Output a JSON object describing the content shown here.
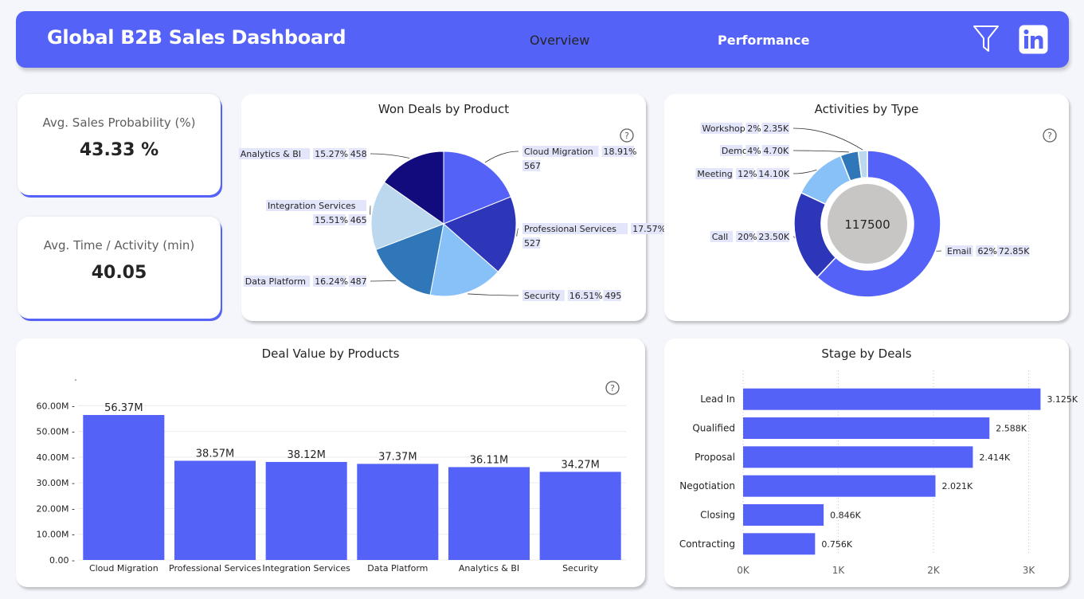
{
  "header": {
    "title": "Global B2B Sales Dashboard",
    "nav": [
      "Overview",
      "Performance"
    ],
    "icons": [
      "filter-icon",
      "linkedin-icon"
    ]
  },
  "kpis": [
    {
      "label": "Avg. Sales Probability (%)",
      "value": "43.33 %"
    },
    {
      "label": "Avg. Time / Activity (min)",
      "value": "40.05"
    }
  ],
  "colors": {
    "accent": "#5562f7",
    "background": "#f4f6fc"
  },
  "chart_data": [
    {
      "type": "pie",
      "title": "Won Deals by Product",
      "categories": [
        "Cloud Migration",
        "Professional Services",
        "Security",
        "Data Platform",
        "Integration Services",
        "Analytics & BI"
      ],
      "values": [
        567,
        527,
        495,
        487,
        465,
        458
      ],
      "percents": [
        "18.91%",
        "17.57%",
        "16.51%",
        "16.24%",
        "15.51%",
        "15.27%"
      ],
      "colors": [
        "#5562f7",
        "#2d35b9",
        "#88c1f8",
        "#2f77b8",
        "#bcd8ee",
        "#120b7e"
      ]
    },
    {
      "type": "pie",
      "subtype": "donut",
      "title": "Activities by Type",
      "center_label": "117500",
      "categories": [
        "Email",
        "Call",
        "Meeting",
        "Demo",
        "Workshop"
      ],
      "values": [
        72850,
        23500,
        14100,
        4700,
        2350
      ],
      "value_labels": [
        "72.85K",
        "23.50K",
        "14.10K",
        "4.70K",
        "2.35K"
      ],
      "percents": [
        "62%",
        "20%",
        "12%",
        "4%",
        "2%"
      ],
      "colors": [
        "#5562f7",
        "#2d35b9",
        "#88c1f8",
        "#2f77b8",
        "#bcd8ee"
      ]
    },
    {
      "type": "bar",
      "title": "Deal Value by Products",
      "categories": [
        "Cloud Migration",
        "Professional Services",
        "Integration Services",
        "Data Platform",
        "Analytics & BI",
        "Security"
      ],
      "values": [
        56.37,
        38.57,
        38.12,
        37.37,
        36.11,
        34.27
      ],
      "value_labels": [
        "56.37M",
        "38.57M",
        "38.12M",
        "37.37M",
        "36.11M",
        "34.27M"
      ],
      "unit": "M",
      "yticks": [
        "0.00",
        "10.00M",
        "20.00M",
        "30.00M",
        "40.00M",
        "50.00M",
        "60.00M"
      ],
      "ylim": [
        0,
        60
      ],
      "grid": true,
      "color": "#5562f7"
    },
    {
      "type": "bar",
      "orientation": "horizontal",
      "title": "Stage by Deals",
      "categories": [
        "Lead In",
        "Qualified",
        "Proposal",
        "Negotiation",
        "Closing",
        "Contracting"
      ],
      "values": [
        3125,
        2588,
        2414,
        2021,
        846,
        756
      ],
      "value_labels": [
        "3.125K",
        "2.588K",
        "2.414K",
        "2.021K",
        "0.846K",
        "0.756K"
      ],
      "xticks": [
        "0K",
        "1K",
        "2K",
        "3K"
      ],
      "xlim": [
        0,
        3000
      ],
      "grid": true,
      "color": "#5562f7"
    }
  ]
}
